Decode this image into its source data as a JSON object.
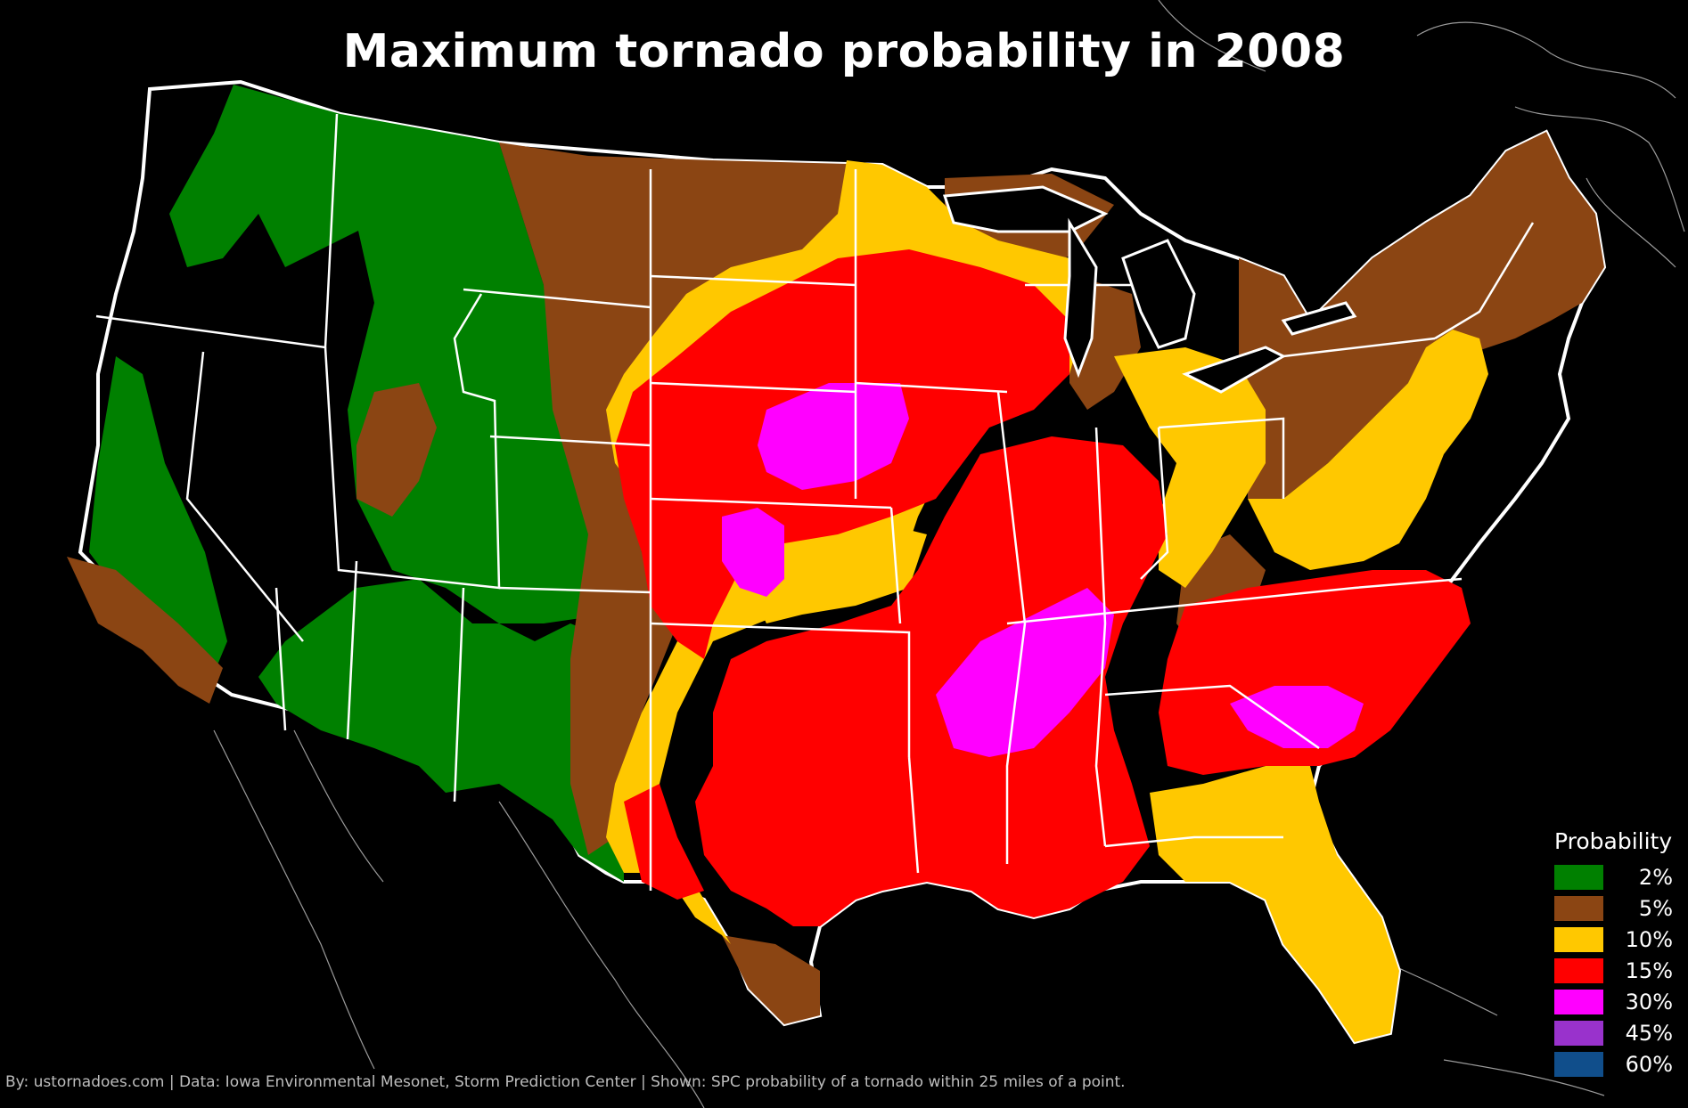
{
  "title": "Maximum tornado probability in 2008",
  "legend": {
    "title": "Probability",
    "items": [
      {
        "label": "2%",
        "color": "#008000"
      },
      {
        "label": "5%",
        "color": "#8B4513"
      },
      {
        "label": "10%",
        "color": "#FFC800"
      },
      {
        "label": "15%",
        "color": "#FF0000"
      },
      {
        "label": "30%",
        "color": "#FF00FF"
      },
      {
        "label": "45%",
        "color": "#9932CC"
      },
      {
        "label": "60%",
        "color": "#104E8B"
      }
    ]
  },
  "footer": {
    "credit": "By: ustornadoes.com | Data: Iowa Environmental Mesonet, Storm Prediction Center | Shown: SPC probability of a tornado within 25 miles of a point."
  },
  "map": {
    "background_color": "#000000",
    "border_color": "#FFFFFF",
    "regions": [
      {
        "name": "pacific-northwest",
        "level": "2%"
      },
      {
        "name": "northern-rockies",
        "level": "2%"
      },
      {
        "name": "california-coast",
        "level": "2%"
      },
      {
        "name": "southern-rockies",
        "level": "2%"
      },
      {
        "name": "northern-plains",
        "level": "5%"
      },
      {
        "name": "great-lakes",
        "level": "5%"
      },
      {
        "name": "northeast",
        "level": "5%"
      },
      {
        "name": "utah-pocket",
        "level": "5%"
      },
      {
        "name": "southern-california",
        "level": "5%"
      },
      {
        "name": "west-texas",
        "level": "5%"
      },
      {
        "name": "upper-midwest-ring",
        "level": "10%"
      },
      {
        "name": "ohio-valley",
        "level": "10%"
      },
      {
        "name": "mid-atlantic",
        "level": "10%"
      },
      {
        "name": "florida",
        "level": "10%"
      },
      {
        "name": "central-plains",
        "level": "15%"
      },
      {
        "name": "mississippi-valley",
        "level": "15%"
      },
      {
        "name": "southeast",
        "level": "15%"
      },
      {
        "name": "texas-gulf",
        "level": "15%"
      },
      {
        "name": "iowa-core",
        "level": "30%"
      },
      {
        "name": "kansas-core",
        "level": "30%"
      },
      {
        "name": "mid-south-core",
        "level": "30%"
      },
      {
        "name": "carolina-core",
        "level": "30%"
      }
    ]
  }
}
